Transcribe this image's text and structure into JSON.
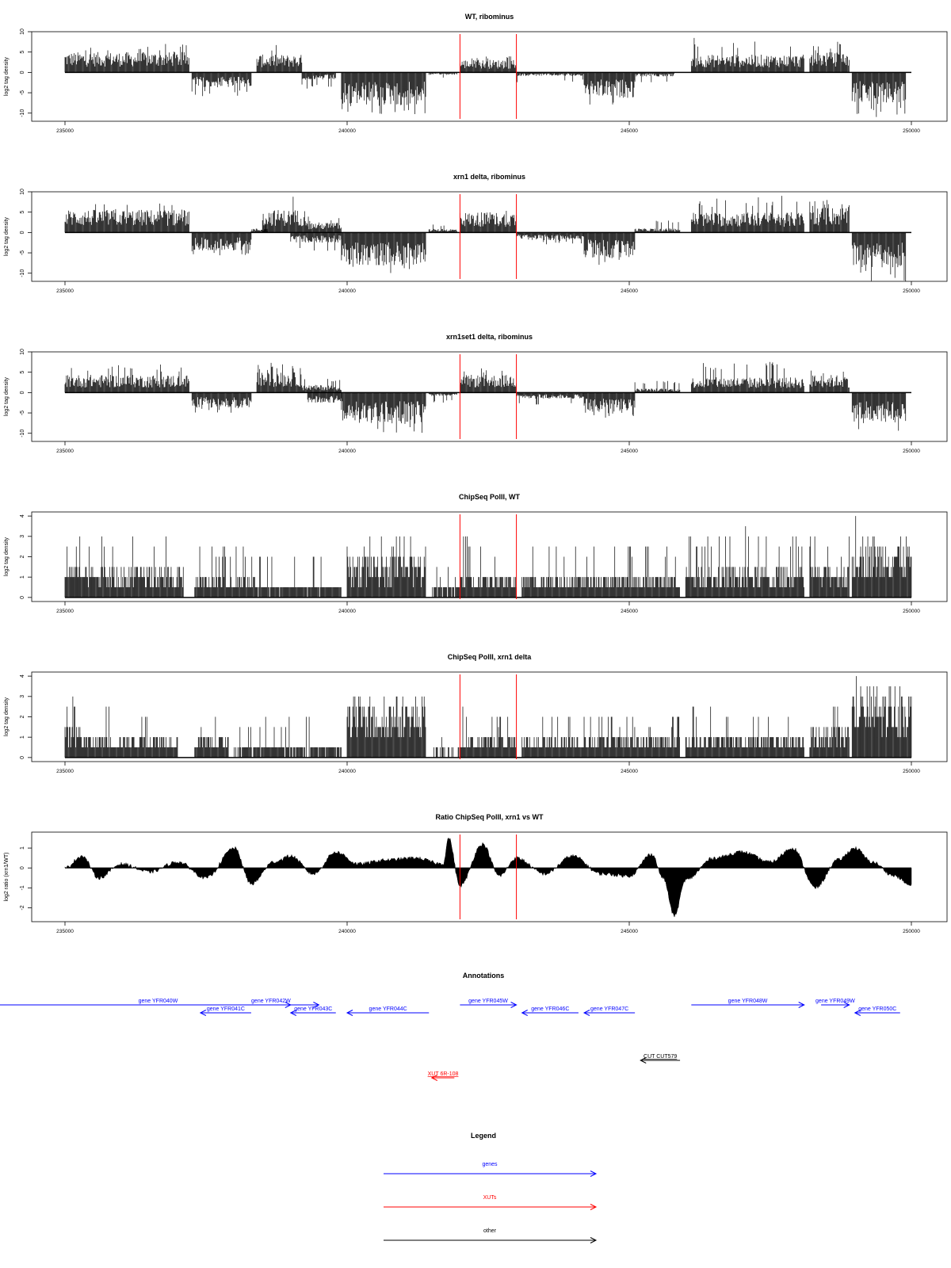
{
  "chart_data": {
    "type": "bar",
    "x_axis": {
      "range": [
        235000,
        250000
      ],
      "ticks": [
        235000,
        240000,
        245000,
        250000
      ]
    },
    "highlight_positions": [
      242000,
      243000
    ],
    "highlight_color": "#ff0000",
    "panels": [
      {
        "title": "WT, ribominus",
        "ylabel": "log2 tag density",
        "ylim": [
          -12,
          10
        ],
        "yticks": [
          -10,
          -5,
          0,
          5,
          10
        ],
        "style": "bars",
        "segments": [
          {
            "start": 235000,
            "end": 237200,
            "sign": 1,
            "level": 4.0,
            "max": 7.0
          },
          {
            "start": 237250,
            "end": 238300,
            "sign": -1,
            "level": 3.0,
            "max": 6.0
          },
          {
            "start": 238400,
            "end": 239200,
            "sign": 1,
            "level": 3.5,
            "max": 6.8
          },
          {
            "start": 239200,
            "end": 239800,
            "sign": -1,
            "level": 1.5,
            "max": 4.0
          },
          {
            "start": 239900,
            "end": 241400,
            "sign": -1,
            "level": 6.5,
            "max": 10.5
          },
          {
            "start": 241450,
            "end": 241950,
            "sign": -1,
            "level": 0.5,
            "max": 1.5
          },
          {
            "start": 242000,
            "end": 243000,
            "sign": 1,
            "level": 2.5,
            "max": 4.0
          },
          {
            "start": 243000,
            "end": 244200,
            "sign": -1,
            "level": 0.7,
            "max": 2.5
          },
          {
            "start": 244200,
            "end": 245100,
            "sign": -1,
            "level": 5.0,
            "max": 8.5
          },
          {
            "start": 245100,
            "end": 245800,
            "sign": -1,
            "level": 0.8,
            "max": 2.5
          },
          {
            "start": 246100,
            "end": 248100,
            "sign": 1,
            "level": 3.5,
            "max": 8.5
          },
          {
            "start": 248200,
            "end": 248900,
            "sign": 1,
            "level": 4.0,
            "max": 7.6
          },
          {
            "start": 248950,
            "end": 249900,
            "sign": -1,
            "level": 6.0,
            "max": 11.0
          }
        ]
      },
      {
        "title": "xrn1 delta, ribominus",
        "ylabel": "log2 tag density",
        "ylim": [
          -12,
          10
        ],
        "yticks": [
          -10,
          -5,
          0,
          5,
          10
        ],
        "style": "bars",
        "segments": [
          {
            "start": 235000,
            "end": 237200,
            "sign": 1,
            "level": 4.5,
            "max": 7.2
          },
          {
            "start": 237250,
            "end": 238300,
            "sign": -1,
            "level": 3.5,
            "max": 6.0
          },
          {
            "start": 238300,
            "end": 238600,
            "sign": 1,
            "level": 0.8,
            "max": 2.5
          },
          {
            "start": 238500,
            "end": 239300,
            "sign": 1,
            "level": 4.5,
            "max": 9.0
          },
          {
            "start": 239300,
            "end": 239900,
            "sign": 1,
            "level": 2.0,
            "max": 4.0
          },
          {
            "start": 239000,
            "end": 239900,
            "sign": -1,
            "level": 2.0,
            "max": 5.0
          },
          {
            "start": 239900,
            "end": 241400,
            "sign": -1,
            "level": 6.5,
            "max": 10.0
          },
          {
            "start": 241450,
            "end": 241950,
            "sign": 1,
            "level": 0.7,
            "max": 2.0
          },
          {
            "start": 242000,
            "end": 243000,
            "sign": 1,
            "level": 4.0,
            "max": 6.0
          },
          {
            "start": 243000,
            "end": 244200,
            "sign": -1,
            "level": 1.5,
            "max": 3.0
          },
          {
            "start": 244200,
            "end": 245100,
            "sign": -1,
            "level": 5.0,
            "max": 8.0
          },
          {
            "start": 245100,
            "end": 245900,
            "sign": 1,
            "level": 0.8,
            "max": 3.0
          },
          {
            "start": 246100,
            "end": 248100,
            "sign": 1,
            "level": 4.0,
            "max": 9.0
          },
          {
            "start": 248200,
            "end": 248900,
            "sign": 1,
            "level": 5.0,
            "max": 8.3
          },
          {
            "start": 248950,
            "end": 249900,
            "sign": -1,
            "level": 7.0,
            "max": 12.0
          }
        ]
      },
      {
        "title": "xrn1set1 delta, ribominus",
        "ylabel": "log2 tag density",
        "ylim": [
          -12,
          10
        ],
        "yticks": [
          -10,
          -5,
          0,
          5,
          10
        ],
        "style": "bars",
        "segments": [
          {
            "start": 235000,
            "end": 237200,
            "sign": 1,
            "level": 3.5,
            "max": 7.0
          },
          {
            "start": 237250,
            "end": 238300,
            "sign": -1,
            "level": 3.0,
            "max": 5.5
          },
          {
            "start": 238400,
            "end": 239200,
            "sign": 1,
            "level": 4.0,
            "max": 7.5
          },
          {
            "start": 239200,
            "end": 239900,
            "sign": 1,
            "level": 1.5,
            "max": 3.5
          },
          {
            "start": 239300,
            "end": 239900,
            "sign": -1,
            "level": 2.0,
            "max": 4.0
          },
          {
            "start": 239900,
            "end": 241400,
            "sign": -1,
            "level": 6.0,
            "max": 10.0
          },
          {
            "start": 241450,
            "end": 241950,
            "sign": -1,
            "level": 0.7,
            "max": 2.5
          },
          {
            "start": 242000,
            "end": 243000,
            "sign": 1,
            "level": 3.5,
            "max": 6.0
          },
          {
            "start": 243000,
            "end": 244200,
            "sign": -1,
            "level": 1.2,
            "max": 3.0
          },
          {
            "start": 244200,
            "end": 245100,
            "sign": -1,
            "level": 4.0,
            "max": 7.0
          },
          {
            "start": 245100,
            "end": 245900,
            "sign": 1,
            "level": 0.8,
            "max": 3.0
          },
          {
            "start": 246100,
            "end": 248100,
            "sign": 1,
            "level": 3.0,
            "max": 8.0
          },
          {
            "start": 248200,
            "end": 248900,
            "sign": 1,
            "level": 3.5,
            "max": 6.5
          },
          {
            "start": 248950,
            "end": 249900,
            "sign": -1,
            "level": 6.0,
            "max": 9.5
          }
        ]
      },
      {
        "title": "ChipSeq PolII, WT",
        "ylabel": "log2 tag density",
        "ylim": [
          -0.2,
          4.2
        ],
        "yticks": [
          0,
          1,
          2,
          3,
          4
        ],
        "style": "bars",
        "segments": [
          {
            "start": 235000,
            "end": 235200,
            "sign": 1,
            "level": 1.5,
            "max": 3.0
          },
          {
            "start": 235200,
            "end": 237100,
            "sign": 1,
            "level": 1.2,
            "max": 3.2
          },
          {
            "start": 237300,
            "end": 238400,
            "sign": 1,
            "level": 0.8,
            "max": 2.5
          },
          {
            "start": 238400,
            "end": 239900,
            "sign": 1,
            "level": 0.6,
            "max": 2.3
          },
          {
            "start": 240000,
            "end": 241400,
            "sign": 1,
            "level": 1.8,
            "max": 3.2
          },
          {
            "start": 241500,
            "end": 242000,
            "sign": 1,
            "level": 0.5,
            "max": 1.5
          },
          {
            "start": 242000,
            "end": 243000,
            "sign": 1,
            "level": 1.0,
            "max": 3.0
          },
          {
            "start": 243100,
            "end": 245900,
            "sign": 1,
            "level": 1.0,
            "max": 2.8
          },
          {
            "start": 246000,
            "end": 248100,
            "sign": 1,
            "level": 1.2,
            "max": 3.3
          },
          {
            "start": 248200,
            "end": 248900,
            "sign": 1,
            "level": 1.3,
            "max": 3.0
          },
          {
            "start": 248950,
            "end": 250000,
            "sign": 1,
            "level": 2.4,
            "max": 4.0
          }
        ]
      },
      {
        "title": "ChipSeq PolII, xrn1 delta",
        "ylabel": "log2 tag density",
        "ylim": [
          -0.2,
          4.2
        ],
        "yticks": [
          0,
          1,
          2,
          3,
          4
        ],
        "style": "bars",
        "segments": [
          {
            "start": 235000,
            "end": 235300,
            "sign": 1,
            "level": 1.3,
            "max": 3.2
          },
          {
            "start": 235300,
            "end": 237000,
            "sign": 1,
            "level": 1.0,
            "max": 2.6
          },
          {
            "start": 237300,
            "end": 237900,
            "sign": 1,
            "level": 0.9,
            "max": 2.0
          },
          {
            "start": 238000,
            "end": 239900,
            "sign": 1,
            "level": 0.5,
            "max": 2.0
          },
          {
            "start": 240000,
            "end": 241400,
            "sign": 1,
            "level": 2.3,
            "max": 3.1
          },
          {
            "start": 241500,
            "end": 242000,
            "sign": 1,
            "level": 0.3,
            "max": 1.0
          },
          {
            "start": 242000,
            "end": 243000,
            "sign": 1,
            "level": 0.9,
            "max": 2.3
          },
          {
            "start": 243100,
            "end": 245900,
            "sign": 1,
            "level": 0.9,
            "max": 2.2
          },
          {
            "start": 246000,
            "end": 248100,
            "sign": 1,
            "level": 1.0,
            "max": 2.8
          },
          {
            "start": 248200,
            "end": 248900,
            "sign": 1,
            "level": 1.3,
            "max": 3.0
          },
          {
            "start": 248950,
            "end": 250000,
            "sign": 1,
            "level": 2.8,
            "max": 3.8
          }
        ]
      },
      {
        "title": "Ratio ChipSeq PolII, xrn1 vs WT",
        "ylabel": "log2 ratio (xrn1/WT)",
        "ylim": [
          -2.7,
          1.8
        ],
        "yticks": [
          -2,
          -1,
          0,
          1
        ],
        "style": "area",
        "profile_x": [
          235000,
          235300,
          235600,
          236000,
          236500,
          237000,
          237500,
          238000,
          238300,
          238700,
          239000,
          239400,
          239800,
          240200,
          240700,
          241200,
          241700,
          241800,
          242000,
          242400,
          242700,
          243000,
          243500,
          244000,
          244500,
          245000,
          245400,
          245600,
          245800,
          246000,
          246500,
          247000,
          247500,
          247900,
          248300,
          248700,
          249000,
          249300,
          249700,
          250000
        ],
        "profile_y": [
          0.0,
          0.6,
          -0.5,
          0.2,
          -0.2,
          0.3,
          -0.5,
          1.0,
          -0.8,
          0.3,
          0.6,
          -0.3,
          0.8,
          0.2,
          0.4,
          0.5,
          0.2,
          1.5,
          -0.9,
          1.2,
          -0.4,
          0.5,
          -0.3,
          0.6,
          -0.3,
          -0.4,
          0.7,
          -0.5,
          -2.4,
          -0.6,
          0.5,
          0.8,
          0.3,
          1.0,
          -1.0,
          0.4,
          1.0,
          0.3,
          -0.4,
          -0.9
        ]
      }
    ],
    "annotations": {
      "title": "Annotations",
      "items": [
        {
          "label": "gene YFR040W",
          "start": 233800,
          "end": 239500,
          "strand": "+",
          "type": "gene",
          "row": 1
        },
        {
          "label": "gene YFR041C",
          "start": 237400,
          "end": 238300,
          "strand": "-",
          "type": "gene",
          "row": 2
        },
        {
          "label": "gene YFR042W",
          "start": 238300,
          "end": 239000,
          "strand": "+",
          "type": "gene",
          "row": 1
        },
        {
          "label": "gene YFR043C",
          "start": 239000,
          "end": 239800,
          "strand": "-",
          "type": "gene",
          "row": 2
        },
        {
          "label": "gene YFR044C",
          "start": 240000,
          "end": 241450,
          "strand": "-",
          "type": "gene",
          "row": 2
        },
        {
          "label": "gene YFR045W",
          "start": 242000,
          "end": 243000,
          "strand": "+",
          "type": "gene",
          "row": 1
        },
        {
          "label": "gene YFR046C",
          "start": 243100,
          "end": 244100,
          "strand": "-",
          "type": "gene",
          "row": 2
        },
        {
          "label": "gene YFR047C",
          "start": 244200,
          "end": 245100,
          "strand": "-",
          "type": "gene",
          "row": 2
        },
        {
          "label": "gene YFR048W",
          "start": 246100,
          "end": 248100,
          "strand": "+",
          "type": "gene",
          "row": 1
        },
        {
          "label": "gene YFR049W",
          "start": 248400,
          "end": 248900,
          "strand": "+",
          "type": "gene",
          "row": 1
        },
        {
          "label": "gene YFR050C",
          "start": 249000,
          "end": 249800,
          "strand": "-",
          "type": "gene",
          "row": 2
        },
        {
          "label": "CUT CUT579",
          "start": 245200,
          "end": 245900,
          "strand": "-",
          "type": "other",
          "row": 3
        },
        {
          "label": "XUT 6R-108",
          "start": 241500,
          "end": 241900,
          "strand": "-",
          "type": "xut",
          "row": 4
        }
      ]
    },
    "legend": {
      "title": "Legend",
      "entries": [
        {
          "label": "genes",
          "color": "#0000ff"
        },
        {
          "label": "XUTs",
          "color": "#ff0000"
        },
        {
          "label": "other",
          "color": "#000000"
        }
      ]
    },
    "colors": {
      "bars": "#000000",
      "gene": "#0000ff",
      "xut": "#ff0000",
      "other": "#000000",
      "highlight": "#ff0000"
    }
  }
}
